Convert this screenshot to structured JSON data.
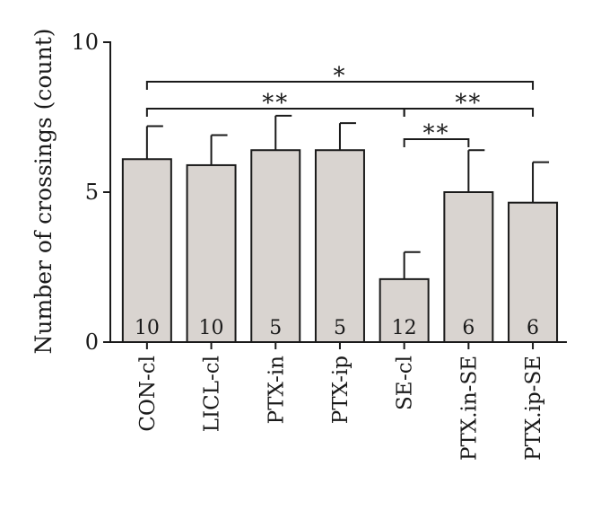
{
  "chart_data": {
    "type": "bar",
    "ylabel": "Number of crossings (count)",
    "xlabel": "",
    "ylim": [
      0,
      10
    ],
    "yticks": [
      0,
      5,
      10
    ],
    "categories": [
      "CON-cl",
      "LICL-cl",
      "PTX-in",
      "PTX-ip",
      "SE-cl",
      "PTX.in-SE",
      "PTX.ip-SE"
    ],
    "values": [
      6.1,
      5.9,
      6.4,
      6.4,
      2.1,
      5.0,
      4.65
    ],
    "errors": [
      1.1,
      1.0,
      1.15,
      0.9,
      0.9,
      1.4,
      1.35
    ],
    "n_labels": [
      "10",
      "10",
      "5",
      "5",
      "12",
      "6",
      "6"
    ],
    "bar_color": "#d9d4d0",
    "significance": [
      {
        "from": 0,
        "to": 6,
        "label": "*"
      },
      {
        "from": 0,
        "to": 4,
        "label": "**"
      },
      {
        "from": 4,
        "to": 6,
        "label": "**"
      },
      {
        "from": 4,
        "to": 5,
        "label": "**"
      }
    ]
  }
}
